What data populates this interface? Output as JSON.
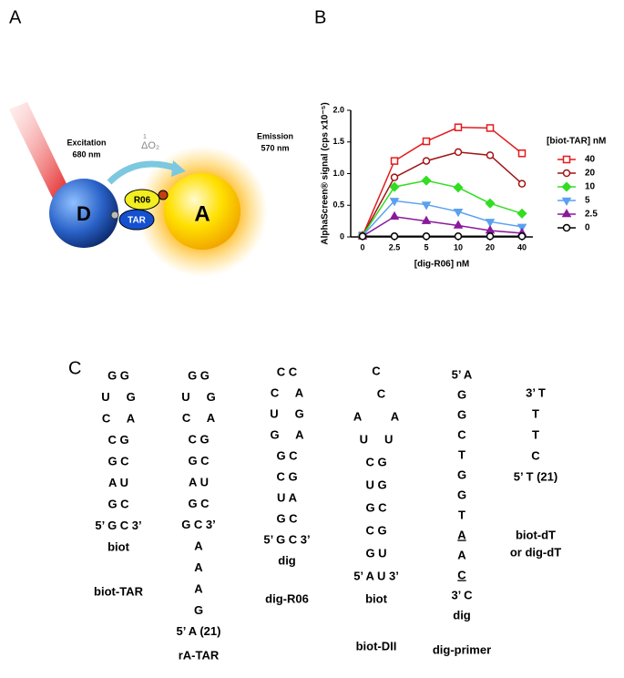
{
  "panel_a": {
    "label": "A",
    "excitation": "Excitation",
    "excitation_nm": "680 nm",
    "emission": "Emission",
    "emission_nm": "570 nm",
    "oxygen_sup": "1",
    "oxygen": "ΔO₂",
    "donor": "D",
    "acceptor": "A",
    "r06": "R06",
    "tar": "TAR"
  },
  "panel_b": {
    "label": "B"
  },
  "chart_data": {
    "type": "line",
    "xlabel": "[dig-R06] nM",
    "ylabel": "AlphaScreen® signal (cps x10⁻⁵)",
    "legend_title": "[biot-TAR] nM",
    "categories": [
      "0",
      "2.5",
      "5",
      "10",
      "20",
      "40"
    ],
    "ylim": [
      0,
      2.0
    ],
    "yticks": [
      0,
      0.5,
      {
        "value": 1,
        "label": "1.0"
      },
      1.5,
      {
        "value": 2,
        "label": "2.0"
      }
    ],
    "legend": "right",
    "series": [
      {
        "name": "40",
        "color": "#e41a1c",
        "marker": "square",
        "marker_fill": false,
        "values": [
          0.02,
          1.2,
          1.51,
          1.73,
          1.72,
          1.32
        ]
      },
      {
        "name": "20",
        "color": "#a01414",
        "marker": "circle",
        "marker_fill": false,
        "values": [
          0.02,
          0.94,
          1.2,
          1.34,
          1.29,
          0.84
        ]
      },
      {
        "name": "10",
        "color": "#33dd22",
        "marker": "diamond",
        "marker_fill": true,
        "values": [
          0.02,
          0.79,
          0.89,
          0.78,
          0.53,
          0.37
        ]
      },
      {
        "name": "5",
        "color": "#5aa0f0",
        "marker": "triangle-down",
        "marker_fill": true,
        "values": [
          0.02,
          0.57,
          0.51,
          0.4,
          0.24,
          0.16
        ]
      },
      {
        "name": "2.5",
        "color": "#8a1a9a",
        "marker": "triangle-up",
        "marker_fill": true,
        "values": [
          0.01,
          0.32,
          0.25,
          0.18,
          0.1,
          0.06
        ]
      },
      {
        "name": "0",
        "color": "#000000",
        "marker": "circle",
        "marker_fill": false,
        "values": [
          0.01,
          0.01,
          0.01,
          0.01,
          0.01,
          0.01
        ]
      }
    ]
  },
  "panel_c": {
    "label": "C",
    "structures": [
      {
        "name_lines": [
          "biot-TAR"
        ],
        "rows": [
          "G G",
          "U     G",
          "C     A",
          "C G",
          "G C",
          "A U",
          "G C",
          "5’ G C 3’",
          "biot"
        ]
      },
      {
        "name_lines": [
          "rA-TAR"
        ],
        "rows": [
          "G G",
          "U     G",
          "C     A",
          "C G",
          "G C",
          "A U",
          "G C",
          "G C 3’",
          "A",
          "A",
          "A",
          "G",
          "5’ A (21)"
        ]
      },
      {
        "name_lines": [
          "dig-R06"
        ],
        "rows": [
          "C C",
          "C     A",
          "U     G",
          "G     A",
          "G C",
          "C G",
          "U A",
          "G C",
          "5’ G C 3’",
          "dig"
        ]
      },
      {
        "name_lines": [
          "biot-DII"
        ],
        "rows": [
          "C",
          "   C",
          "A         A",
          "U     U",
          "C G",
          "U G",
          "G C",
          "C G",
          "G U",
          "5’ A U 3’",
          "biot"
        ]
      },
      {
        "name_lines": [
          "dig-primer"
        ],
        "rows": [
          "5’ A",
          "G",
          "G",
          "C",
          "T",
          "G",
          "G",
          "T",
          {
            "text": "A",
            "underline": true
          },
          "A",
          {
            "text": "C",
            "underline": true
          },
          "3’ C",
          "dig"
        ]
      },
      {
        "name_lines": [
          "biot-dT",
          "or dig-dT"
        ],
        "rows": [
          "3’ T",
          "T",
          "T",
          "C",
          "5’ T (21)"
        ]
      }
    ]
  }
}
